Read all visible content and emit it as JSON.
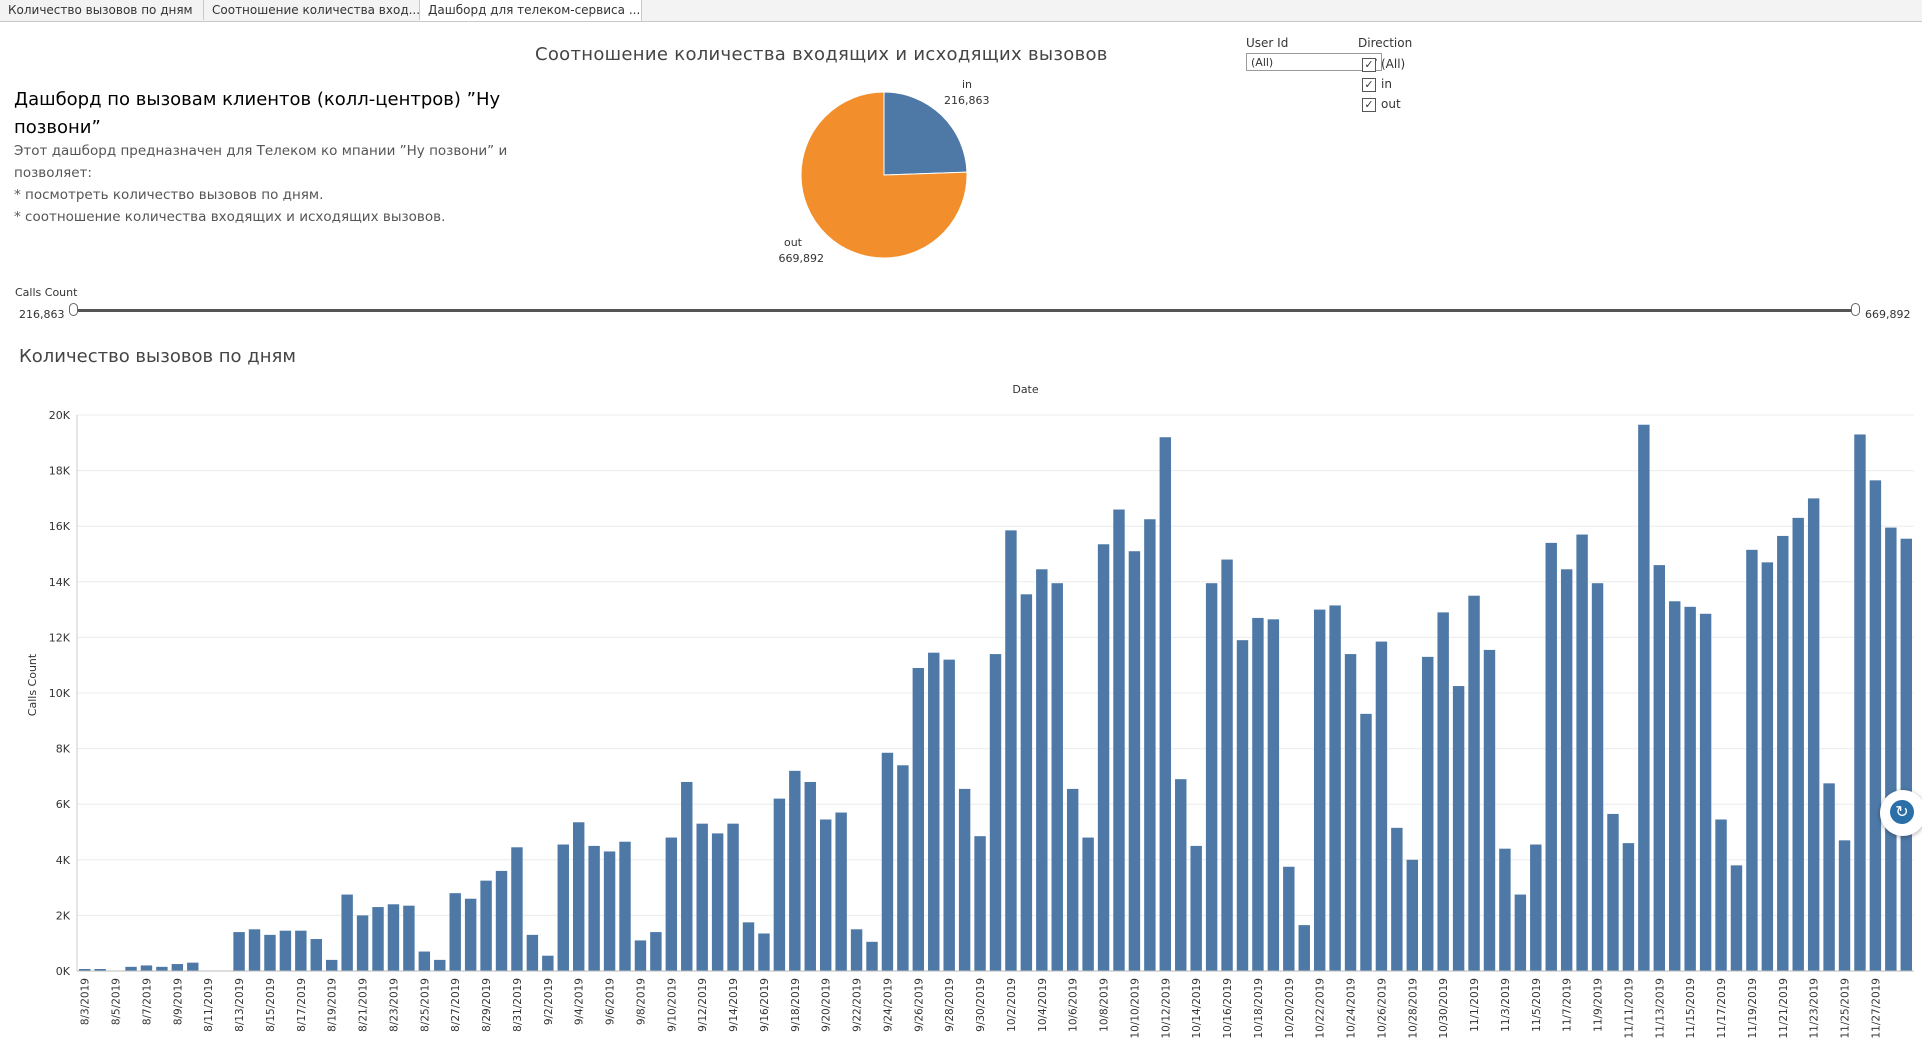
{
  "tabs": [
    {
      "label": "Количество вызовов по дням",
      "active": false
    },
    {
      "label": "Соотношение количества вход...",
      "active": false
    },
    {
      "label": "Дашборд для телеком-сервиса ...",
      "active": true
    }
  ],
  "dashboard": {
    "title": "Дашборд  по вызовам клиентов (колл-центров) ”Ну позвони”",
    "description": [
      "Этот дашборд предназначен для Телеком ко мпании ”Ну позвони” и",
      "позволяет:",
      "* посмотреть количество вызовов по дням.",
      "* соотношение количества входящих и исходящих вызовов."
    ]
  },
  "filters": {
    "user_id": {
      "label": "User Id",
      "value": "(All)"
    },
    "direction": {
      "label": "Direction",
      "options": [
        {
          "label": "(All)",
          "checked": true
        },
        {
          "label": "in",
          "checked": true
        },
        {
          "label": "out",
          "checked": true
        }
      ]
    }
  },
  "calls_slider": {
    "label": "Calls Count",
    "min": "216,863",
    "max": "669,892"
  },
  "pie_title": "Соотношение количества  входящих и исходящих вызовов",
  "bar_title": "Количество вызовов по дням",
  "colors": {
    "in": "#4e79a7",
    "out": "#f28e2b",
    "bar": "#4e79a7"
  },
  "chart_data": [
    {
      "type": "pie",
      "title": "Соотношение количества  входящих и исходящих вызовов",
      "slices": [
        {
          "label": "in",
          "value": 216863,
          "display": "216,863"
        },
        {
          "label": "out",
          "value": 669892,
          "display": "669,892"
        }
      ]
    },
    {
      "type": "bar",
      "title": "Количество вызовов по дням",
      "xlabel": "Date",
      "ylabel": "Calls Count",
      "ylim": [
        0,
        20000
      ],
      "yticks": [
        "0K",
        "2K",
        "4K",
        "6K",
        "8K",
        "10K",
        "12K",
        "14K",
        "16K",
        "18K",
        "20K"
      ],
      "tick_labels": [
        "8/3/2019",
        "8/5/2019",
        "8/7/2019",
        "8/9/2019",
        "8/11/2019",
        "8/13/2019",
        "8/15/2019",
        "8/17/2019",
        "8/19/2019",
        "8/21/2019",
        "8/23/2019",
        "8/25/2019",
        "8/27/2019",
        "8/29/2019",
        "8/31/2019",
        "9/2/2019",
        "9/4/2019",
        "9/6/2019",
        "9/8/2019",
        "9/10/2019",
        "9/12/2019",
        "9/14/2019",
        "9/16/2019",
        "9/18/2019",
        "9/20/2019",
        "9/22/2019",
        "9/24/2019",
        "9/26/2019",
        "9/28/2019",
        "9/30/2019",
        "10/2/2019",
        "10/4/2019",
        "10/6/2019",
        "10/8/2019",
        "10/10/2019",
        "10/12/2019",
        "10/14/2019",
        "10/16/2019",
        "10/18/2019",
        "10/20/2019",
        "10/22/2019",
        "10/24/2019",
        "10/26/2019",
        "10/28/2019",
        "10/30/2019",
        "11/1/2019",
        "11/3/2019",
        "11/5/2019",
        "11/7/2019",
        "11/9/2019",
        "11/11/2019",
        "11/13/2019",
        "11/15/2019",
        "11/17/2019",
        "11/19/2019",
        "11/21/2019",
        "11/23/2019",
        "11/25/2019",
        "11/27/2019"
      ],
      "values": [
        20,
        20,
        0,
        150,
        200,
        150,
        250,
        300,
        0,
        0,
        1400,
        1500,
        1300,
        1450,
        1450,
        1150,
        400,
        2750,
        2000,
        2300,
        2400,
        2350,
        700,
        400,
        2800,
        2600,
        3250,
        3600,
        4450,
        1300,
        550,
        4550,
        5350,
        4500,
        4300,
        4650,
        1100,
        1400,
        4800,
        6800,
        5300,
        4950,
        5300,
        1750,
        1350,
        6200,
        7200,
        6800,
        5450,
        5700,
        1500,
        1050,
        7850,
        7400,
        10900,
        11450,
        11200,
        6550,
        4850,
        11400,
        15850,
        13550,
        14450,
        13950,
        6550,
        4800,
        15350,
        16600,
        15100,
        16250,
        19200,
        6900,
        4500,
        13950,
        14800,
        11900,
        12700,
        12650,
        3750,
        1650,
        13000,
        13150,
        11400,
        9250,
        11850,
        5150,
        4000,
        11300,
        12900,
        10250,
        13500,
        11550,
        4400,
        2750,
        4550,
        15400,
        14450,
        15700,
        13950,
        5650,
        4600,
        19650,
        14600,
        13300,
        13100,
        12850,
        5450,
        3800,
        15150,
        14700,
        15650,
        16300,
        17000,
        6750,
        4700,
        19300,
        17650,
        15950,
        15550
      ]
    }
  ]
}
